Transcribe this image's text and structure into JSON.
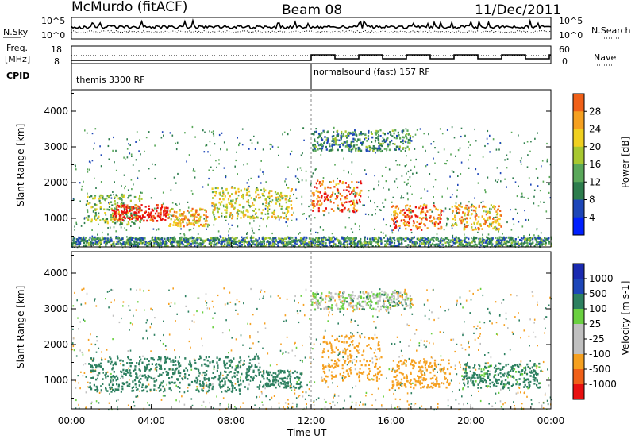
{
  "header": {
    "station": "McMurdo (fitACF)",
    "beam": "Beam 08",
    "date": "11/Dec/2011"
  },
  "top_panel": {
    "left_label_1": "N.Sky",
    "left_label_2": "Freq.",
    "left_label_3": "[MHz]",
    "left_label_4": "CPID",
    "sky_ticks": [
      "10^5",
      "10^0"
    ],
    "freq_ticks": [
      "18",
      "8"
    ],
    "right_label_1": "N.Search",
    "right_label_2": "Nave",
    "search_ticks": [
      "10^5",
      "10^0"
    ],
    "nave_ticks": [
      "60",
      "0"
    ],
    "cpid_segments": [
      {
        "label": "themis 3300 RF",
        "start_hour": 0
      },
      {
        "label": "normalsound (fast) 157 RF",
        "start_hour": 12
      }
    ]
  },
  "colors": {
    "power_scale": [
      "#0020ff",
      "#1d46b8",
      "#2d7d4d",
      "#5aa85a",
      "#a8c830",
      "#f0d020",
      "#f5a020",
      "#f06018",
      "#e81010"
    ],
    "velocity_scale": [
      "#e81010",
      "#f06018",
      "#f5a020",
      "#c0c0c0",
      "#c0c0c0",
      "#6ad040",
      "#2d8060",
      "#1d46b8",
      "#1a2ab0"
    ]
  },
  "chart_data": [
    {
      "type": "heatmap",
      "title": "Power",
      "xlabel": "Time UT",
      "ylabel": "Slant Range [km]",
      "x_ticks": [
        "00:00",
        "04:00",
        "08:00",
        "12:00",
        "16:00",
        "20:00",
        "00:00"
      ],
      "xlim": [
        0,
        24
      ],
      "ylim": [
        200,
        4600
      ],
      "y_ticks": [
        1000,
        2000,
        3000,
        4000
      ],
      "colorbar": {
        "label": "Power [dB]",
        "ticks": [
          "4",
          "8",
          "12",
          "16",
          "20",
          "24",
          "28"
        ]
      },
      "regions": [
        {
          "t0": 0.7,
          "t1": 3.5,
          "r0": 850,
          "r1": 1700,
          "value": 12
        },
        {
          "t0": 2.0,
          "t1": 4.8,
          "r0": 950,
          "r1": 1400,
          "value": 28
        },
        {
          "t0": 4.8,
          "t1": 6.8,
          "r0": 800,
          "r1": 1300,
          "value": 20
        },
        {
          "t0": 7.0,
          "t1": 11.0,
          "r0": 1000,
          "r1": 1900,
          "value": 16
        },
        {
          "t0": 12.0,
          "t1": 14.5,
          "r0": 1200,
          "r1": 2100,
          "value": 24
        },
        {
          "t0": 16.0,
          "t1": 18.5,
          "r0": 700,
          "r1": 1400,
          "value": 24
        },
        {
          "t0": 19.0,
          "t1": 21.5,
          "r0": 700,
          "r1": 1400,
          "value": 20
        },
        {
          "t0": 12.0,
          "t1": 17.0,
          "r0": 2900,
          "r1": 3500,
          "value": 8
        },
        {
          "t0": 0.0,
          "t1": 24.0,
          "r0": 250,
          "r1": 500,
          "value": 8
        }
      ]
    },
    {
      "type": "heatmap",
      "title": "Velocity",
      "xlabel": "Time UT",
      "ylabel": "Slant Range [km]",
      "x_ticks": [
        "00:00",
        "04:00",
        "08:00",
        "12:00",
        "16:00",
        "20:00",
        "00:00"
      ],
      "xlim": [
        0,
        24
      ],
      "ylim": [
        200,
        4600
      ],
      "y_ticks": [
        1000,
        2000,
        3000,
        4000
      ],
      "colorbar": {
        "label": "Velocity [m s-1]",
        "ticks": [
          "-1000",
          "-500",
          "-100",
          "-25",
          "25",
          "100",
          "500",
          "1000"
        ]
      },
      "regions": [
        {
          "t0": 0.8,
          "t1": 9.5,
          "r0": 700,
          "r1": 1700,
          "value": 300
        },
        {
          "t0": 9.5,
          "t1": 11.5,
          "r0": 800,
          "r1": 1300,
          "value": 300
        },
        {
          "t0": 12.5,
          "t1": 15.5,
          "r0": 1000,
          "r1": 2300,
          "value": -300
        },
        {
          "t0": 16.0,
          "t1": 19.0,
          "r0": 800,
          "r1": 1600,
          "value": -300
        },
        {
          "t0": 19.5,
          "t1": 23.5,
          "r0": 800,
          "r1": 1500,
          "value": 200
        },
        {
          "t0": 12.0,
          "t1": 17.0,
          "r0": 3000,
          "r1": 3500,
          "value": 0
        }
      ]
    }
  ]
}
